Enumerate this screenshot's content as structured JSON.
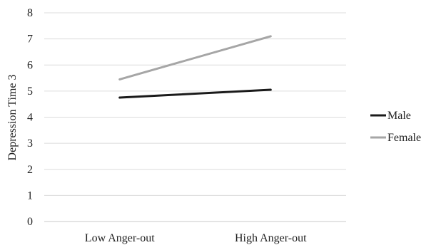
{
  "chart_data": {
    "type": "line",
    "title": "",
    "xlabel": "",
    "ylabel": "Depression Time 3",
    "categories": [
      "Low Anger-out",
      "High Anger-out"
    ],
    "ylim": [
      0,
      8
    ],
    "yticks": [
      0,
      1,
      2,
      3,
      4,
      5,
      6,
      7,
      8
    ],
    "grid": true,
    "legend_position": "right",
    "series": [
      {
        "name": "Male",
        "values": [
          4.75,
          5.05
        ],
        "color": "#1a1a1a"
      },
      {
        "name": "Female",
        "values": [
          5.45,
          7.1
        ],
        "color": "#a6a6a6"
      }
    ]
  }
}
